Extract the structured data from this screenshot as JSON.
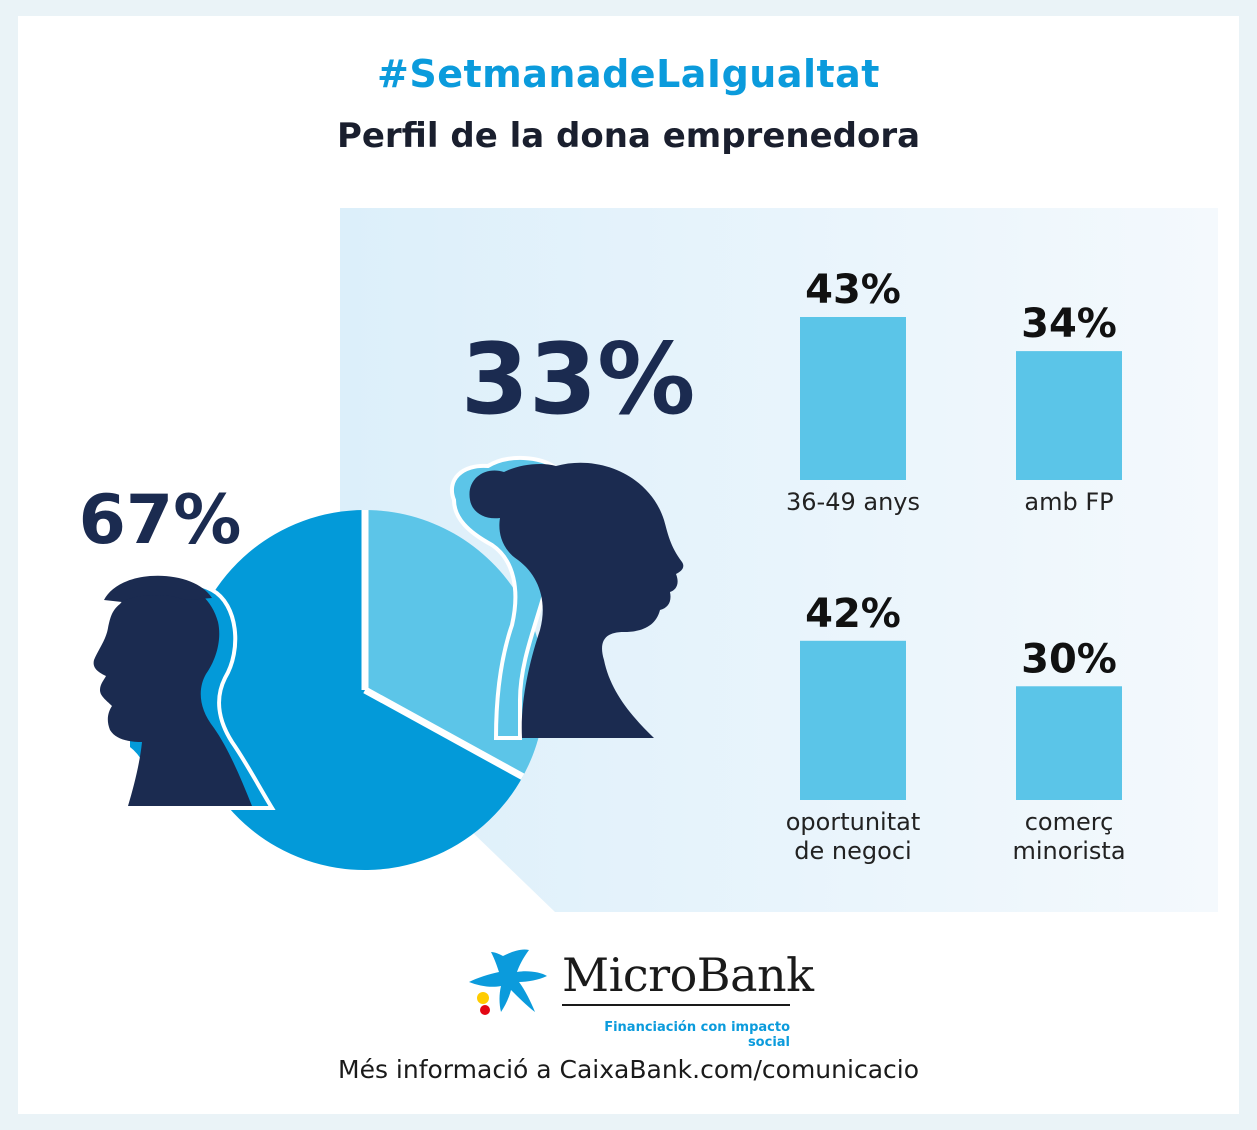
{
  "header": {
    "hashtag": "#SetmanadeLaIgualtat",
    "title": "Perfil de la dona emprenedora"
  },
  "chart_data": [
    {
      "type": "pie",
      "title": "",
      "slices": [
        {
          "label": "67%",
          "value": 67,
          "color": "#039ad9"
        },
        {
          "label": "33%",
          "value": 33,
          "color": "#5cc5e8"
        }
      ]
    },
    {
      "type": "bar",
      "title": "",
      "color": "#5bc5e8",
      "bars": [
        {
          "label_lines": [
            "36-49 anys"
          ],
          "value": 43,
          "value_label": "43%"
        },
        {
          "label_lines": [
            "amb FP"
          ],
          "value": 34,
          "value_label": "34%"
        },
        {
          "label_lines": [
            "oportunitat",
            "de negoci"
          ],
          "value": 42,
          "value_label": "42%"
        },
        {
          "label_lines": [
            "comerç",
            "minorista"
          ],
          "value": 30,
          "value_label": "30%"
        }
      ]
    }
  ],
  "logo": {
    "name": "MicroBank",
    "tagline": "Financiación con impacto social",
    "star_icon": "caixabank-star-icon"
  },
  "footer": {
    "text": "Més informació a CaixaBank.com/comunicacio"
  },
  "colors": {
    "accent": "#0b9bdc",
    "navy": "#1b2b50",
    "panel": "#e2f1fa"
  }
}
